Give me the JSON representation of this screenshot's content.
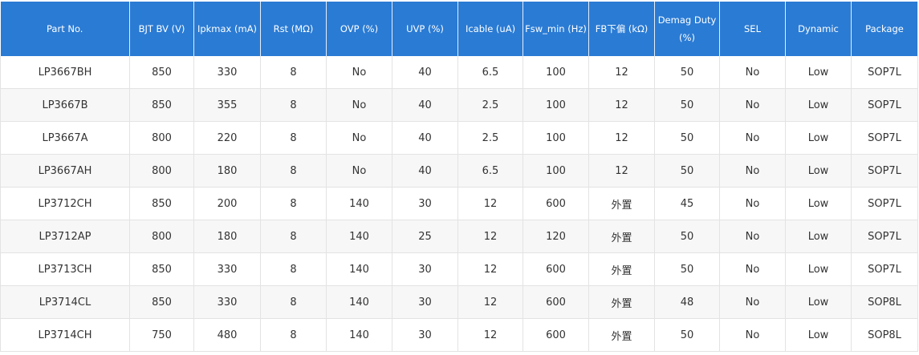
{
  "colors": {
    "header_bg": "#2a7bd4",
    "row_alt": "#f7f7f7"
  },
  "headers": [
    "Part No.",
    "BJT BV (V)",
    "Ipkmax (mA)",
    "Rst (MΩ)",
    "OVP (%)",
    "UVP (%)",
    "Icable (uA)",
    "Fsw_min (Hz)",
    "FB下偏 (kΩ)",
    "Demag Duty (%)",
    "SEL",
    "Dynamic",
    "Package"
  ],
  "rows": [
    [
      "LP3667BH",
      "850",
      "330",
      "8",
      "No",
      "40",
      "6.5",
      "100",
      "12",
      "50",
      "No",
      "Low",
      "SOP7L"
    ],
    [
      "LP3667B",
      "850",
      "355",
      "8",
      "No",
      "40",
      "2.5",
      "100",
      "12",
      "50",
      "No",
      "Low",
      "SOP7L"
    ],
    [
      "LP3667A",
      "800",
      "220",
      "8",
      "No",
      "40",
      "2.5",
      "100",
      "12",
      "50",
      "No",
      "Low",
      "SOP7L"
    ],
    [
      "LP3667AH",
      "800",
      "180",
      "8",
      "No",
      "40",
      "6.5",
      "100",
      "12",
      "50",
      "No",
      "Low",
      "SOP7L"
    ],
    [
      "LP3712CH",
      "850",
      "200",
      "8",
      "140",
      "30",
      "12",
      "600",
      "外置",
      "45",
      "No",
      "Low",
      "SOP7L"
    ],
    [
      "LP3712AP",
      "800",
      "180",
      "8",
      "140",
      "25",
      "12",
      "120",
      "外置",
      "50",
      "No",
      "Low",
      "SOP7L"
    ],
    [
      "LP3713CH",
      "850",
      "330",
      "8",
      "140",
      "30",
      "12",
      "600",
      "外置",
      "50",
      "No",
      "Low",
      "SOP7L"
    ],
    [
      "LP3714CL",
      "850",
      "330",
      "8",
      "140",
      "30",
      "12",
      "600",
      "外置",
      "48",
      "No",
      "Low",
      "SOP8L"
    ],
    [
      "LP3714CH",
      "750",
      "480",
      "8",
      "140",
      "30",
      "12",
      "600",
      "外置",
      "50",
      "No",
      "Low",
      "SOP8L"
    ]
  ]
}
